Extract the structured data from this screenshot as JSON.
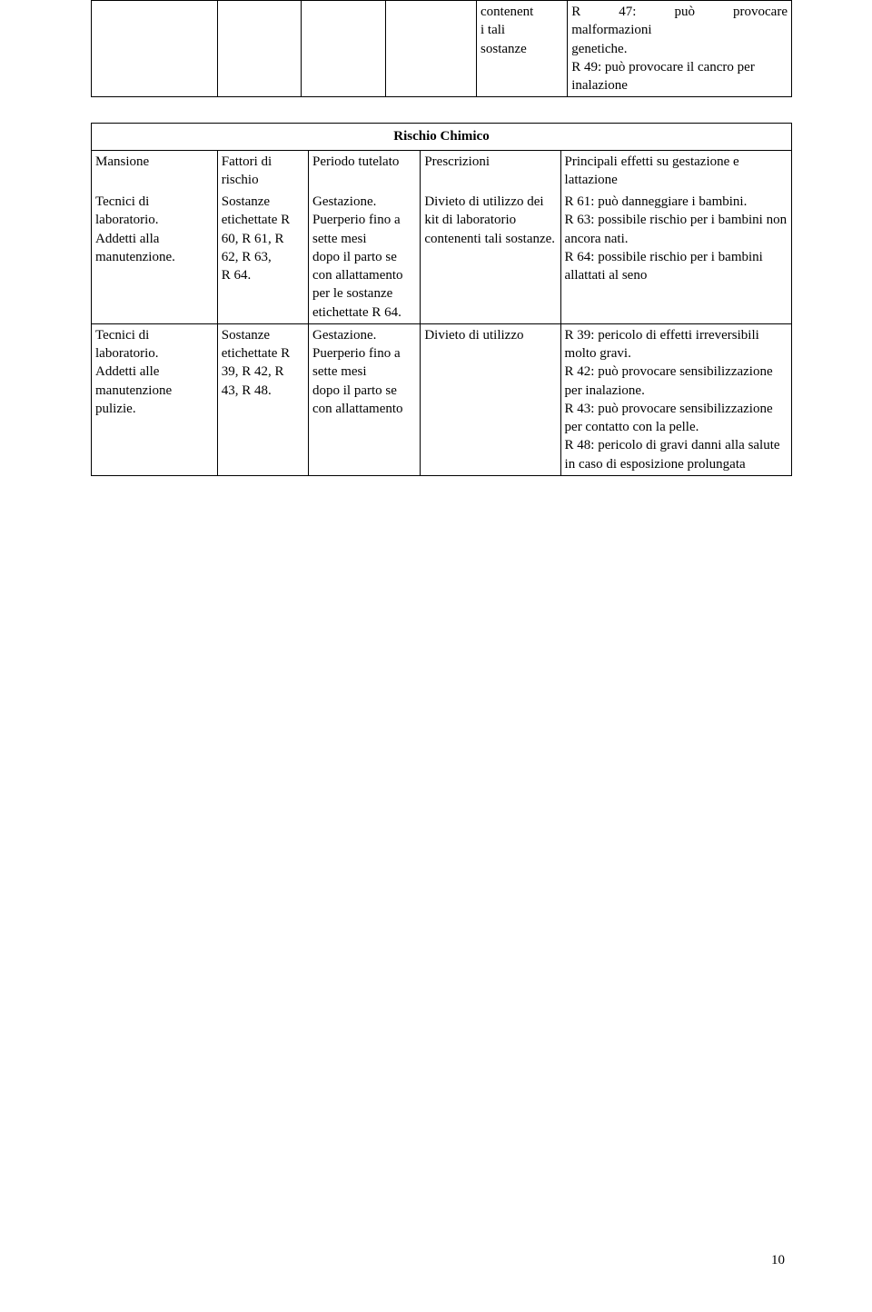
{
  "table1": {
    "col4": "contenent\ni tali\nsostanze",
    "col5": "R 47: può provocare malformazioni\ngenetiche.\nR 49: può provocare il cancro per inalazione"
  },
  "table2": {
    "header": "Rischio Chimico",
    "rowA": {
      "c1": "Mansione",
      "c2": "Fattori di rischio",
      "c3": "Periodo tutelato",
      "c4": "Prescrizioni",
      "c5": "Principali effetti su gestazione e lattazione"
    },
    "rowB": {
      "c1": "Tecnici di laboratorio.\nAddetti alla manutenzione.",
      "c2": "Sostanze etichettate R 60, R 61, R 62, R 63,\nR 64.",
      "c3": "Gestazione. Puerperio fino a sette mesi\ndopo il parto se con allattamento per le sostanze etichettate R 64.",
      "c4": "Divieto di utilizzo dei kit di laboratorio contenenti tali sostanze.",
      "c5": "R 61: può danneggiare i bambini.\nR 63: possibile rischio per i bambini non ancora nati.\nR 64: possibile rischio per i bambini allattati al seno"
    },
    "rowC": {
      "c1": "Tecnici di laboratorio.\nAddetti alle manutenzione pulizie.",
      "c2": "Sostanze etichettate R 39, R 42, R 43, R 48.",
      "c3": "Gestazione. Puerperio fino a sette mesi\ndopo il parto se con allattamento",
      "c4": "Divieto di utilizzo",
      "c5": "R 39: pericolo di effetti irreversibili\nmolto gravi.\nR 42: può provocare sensibilizzazione per inalazione.\nR 43: può provocare sensibilizzazione per contatto con la pelle.\nR 48: pericolo di gravi danni alla salute in caso di esposizione prolungata"
    }
  },
  "pageNumber": "10",
  "colwidths": {
    "t1": [
      "18%",
      "12%",
      "12%",
      "13%",
      "13%",
      "32%"
    ],
    "t2": [
      "18%",
      "13%",
      "16%",
      "20%",
      "33%"
    ]
  }
}
